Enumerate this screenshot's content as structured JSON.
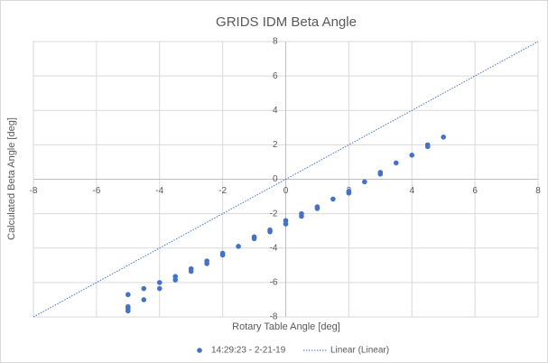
{
  "chart_data": {
    "type": "scatter",
    "title": "GRIDS IDM Beta Angle",
    "xlabel": "Rotary Table Angle [deg]",
    "ylabel": "Calculated Beta Angle [deg]",
    "xlim": [
      -8,
      8
    ],
    "ylim": [
      -8,
      8
    ],
    "xticks": [
      -8,
      -6,
      -4,
      -2,
      0,
      2,
      4,
      6,
      8
    ],
    "yticks": [
      -8,
      -6,
      -4,
      -2,
      0,
      2,
      4,
      6,
      8
    ],
    "grid": true,
    "legend": "bottom",
    "series": [
      {
        "name": "14:29:23 - 2-21-19",
        "color": "#4472c4",
        "x": [
          -5,
          -5,
          -5,
          -5,
          -4.5,
          -4.5,
          -4,
          -4,
          -3.5,
          -3.5,
          -3,
          -3,
          -2.5,
          -2.5,
          -2,
          -2,
          -1.5,
          -1,
          -1,
          -0.5,
          -0.5,
          0,
          0,
          0.5,
          0.5,
          1,
          1,
          1.5,
          2,
          2,
          2.5,
          3,
          3,
          3.5,
          4,
          4.5,
          4.5,
          5
        ],
        "values": [
          -6.7,
          -7.4,
          -7.5,
          -7.65,
          -6.35,
          -7.0,
          -6.0,
          -6.35,
          -5.65,
          -5.85,
          -5.2,
          -5.35,
          -4.75,
          -4.9,
          -4.3,
          -4.4,
          -3.9,
          -3.35,
          -3.45,
          -2.95,
          -3.05,
          -2.4,
          -2.6,
          -2.0,
          -2.15,
          -1.6,
          -1.7,
          -1.15,
          -0.7,
          -0.8,
          -0.15,
          0.4,
          0.3,
          0.95,
          1.4,
          2.0,
          1.9,
          2.45
        ]
      },
      {
        "name": "Linear (Linear)",
        "color": "#4472c4",
        "style": "dotted",
        "x": [
          -8,
          8
        ],
        "values": [
          -8,
          8
        ]
      }
    ]
  }
}
